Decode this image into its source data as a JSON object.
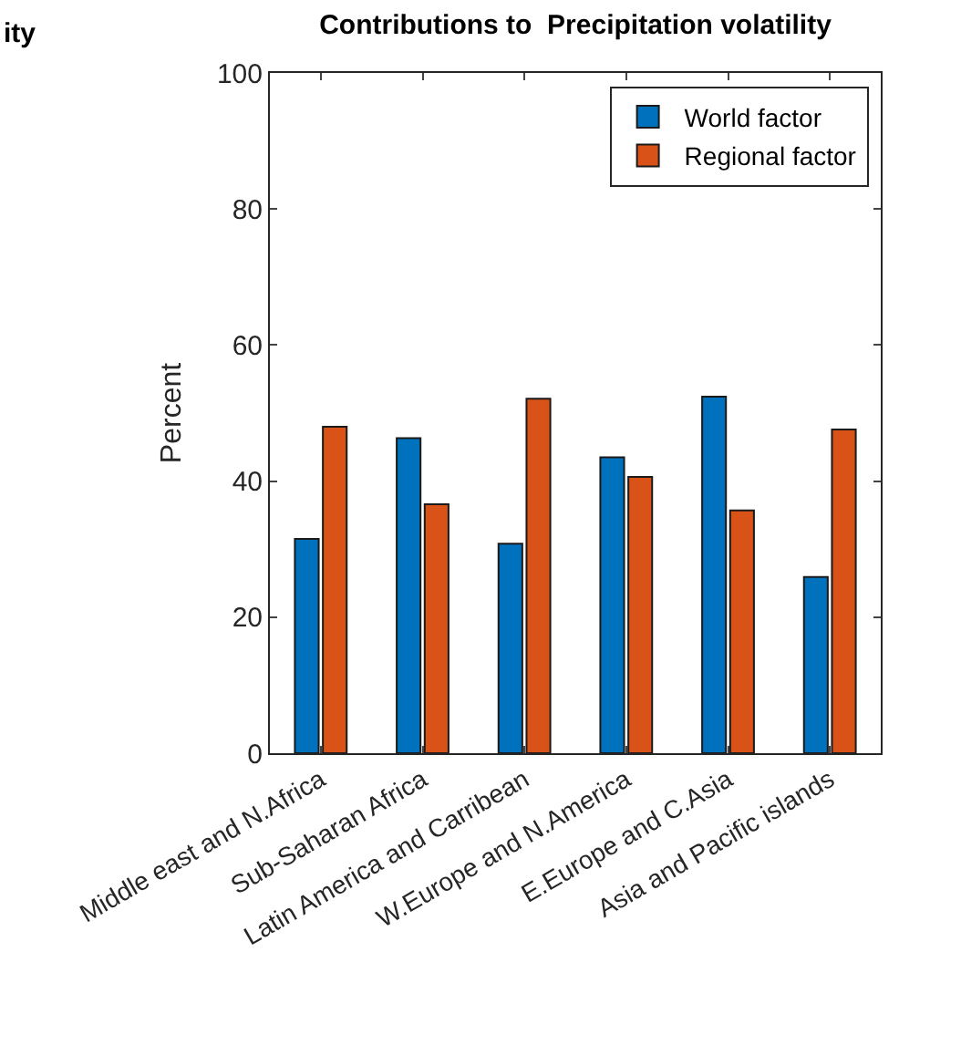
{
  "chart_data": {
    "type": "bar",
    "title": "Contributions to  Precipitation volatility",
    "ylabel": "Percent",
    "annotations": [
      "ity"
    ],
    "categories": [
      "Middle east and N.Africa",
      "Sub-Saharan Africa",
      "Latin America and Carribean",
      "W.Europe and N.America",
      "E.Europe and C.Asia",
      "Asia and Pacific islands"
    ],
    "series": [
      {
        "name": "World factor",
        "color": "#0072bd",
        "values": [
          31.5,
          46.3,
          30.8,
          43.5,
          52.4,
          25.9
        ]
      },
      {
        "name": "Regional factor",
        "color": "#d95319",
        "values": [
          48.0,
          36.6,
          52.1,
          40.6,
          35.7,
          47.6
        ]
      }
    ],
    "ylim": [
      0,
      100
    ],
    "yticks": [
      0,
      20,
      40,
      60,
      80,
      100
    ],
    "legend": "top right"
  }
}
